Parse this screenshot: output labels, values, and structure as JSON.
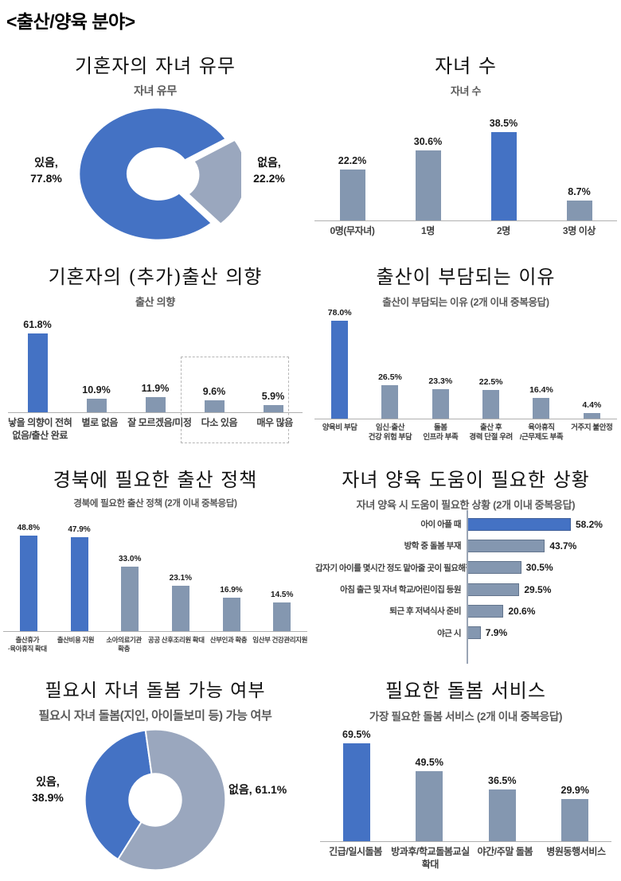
{
  "page": {
    "header": "<출산/양육 분야>"
  },
  "colors": {
    "accent_blue": "#4472C4",
    "bar_gray": "#8497B0",
    "donut_gray": "#9AA7BE",
    "axis_gray": "#b0b0b0"
  },
  "chart_data": [
    {
      "id": "children-existence",
      "type": "pie",
      "title": "기혼자의 자녀 유무",
      "subtitle": "자녀 유무",
      "labels": [
        "있음",
        "없음"
      ],
      "values": [
        77.8,
        22.2
      ],
      "unit": "%",
      "highlighted": [
        0
      ],
      "callouts": {
        "left": "있음,\n77.8%",
        "right": "없음,\n22.2%"
      },
      "exploded_slice": "없음"
    },
    {
      "id": "children-count",
      "type": "bar",
      "title": "자녀 수",
      "subtitle": "자녀 수",
      "categories": [
        "0명(무자녀)",
        "1명",
        "2명",
        "3명 이상"
      ],
      "values": [
        22.2,
        30.6,
        38.5,
        8.7
      ],
      "unit": "%",
      "highlighted": [
        2
      ],
      "ylim": [
        0,
        45
      ]
    },
    {
      "id": "birth-intention",
      "type": "bar",
      "title": "기혼자의 (추가)출산 의향",
      "subtitle": "출산 의향",
      "categories": [
        "낳을 의향이 전혀\n없음/출산 완료",
        "별로 없음",
        "잘 모르겠음/미정",
        "다소 있음",
        "매우 많음"
      ],
      "values": [
        61.8,
        10.9,
        11.9,
        9.6,
        5.9
      ],
      "unit": "%",
      "highlighted": [
        0
      ],
      "annotation_box_categories": [
        "다소 있음",
        "매우 많음"
      ],
      "ylim": [
        0,
        70
      ]
    },
    {
      "id": "burden-reasons",
      "type": "bar",
      "title": "출산이 부담되는 이유",
      "subtitle": "출산이 부담되는 이유 (2개 이내 중복응답)",
      "categories": [
        "양육비 부담",
        "임신·출산\n건강 위험 부담",
        "돌봄\n인프라 부족",
        "출산 후\n경력 단절 우려",
        "육아휴직\n/근무제도 부족",
        "거주지 불안정"
      ],
      "values": [
        78.0,
        26.5,
        23.3,
        22.5,
        16.4,
        4.4
      ],
      "unit": "%",
      "highlighted": [
        0
      ],
      "ylim": [
        0,
        85
      ]
    },
    {
      "id": "needed-birth-policy",
      "type": "bar",
      "title": "경북에 필요한 출산 정책",
      "subtitle": "경북에 필요한 출산 정책 (2개 이내 중복응답)",
      "categories": [
        "출산휴가\n·육아휴직 확대",
        "출산비용 지원",
        "소아의료기관\n확충",
        "공공 산후조리원 확대",
        "산부인과 확충",
        "임산부 건강관리지원"
      ],
      "values": [
        48.8,
        47.9,
        33.0,
        23.1,
        16.9,
        14.5
      ],
      "unit": "%",
      "highlighted": [
        0,
        1
      ],
      "ylim": [
        0,
        55
      ]
    },
    {
      "id": "care-help-situations",
      "type": "hbar",
      "title": "자녀 양육 도움이 필요한 상황",
      "subtitle": "자녀 양육 시 도움이 필요한 상황 (2개 이내 중복응답)",
      "categories": [
        "아이 아플 때",
        "방학 중 돌봄 부재",
        "갑자기 아이를 몇시간 정도 맡아줄 곳이 필요해질 때",
        "아침 출근 및 자녀 학교/어린이집 등원",
        "퇴근 후 저녁식사 준비",
        "야근 시"
      ],
      "values": [
        58.2,
        43.7,
        30.5,
        29.5,
        20.6,
        7.9
      ],
      "unit": "%",
      "highlighted": [
        0
      ],
      "xlim": [
        0,
        65
      ]
    },
    {
      "id": "care-availability",
      "type": "pie",
      "title": "필요시 자녀 돌봄 가능 여부",
      "subtitle": "필요시 자녀 돌봄(지인, 아이돌보미 등) 가능 여부",
      "labels": [
        "있음",
        "없음"
      ],
      "values": [
        38.9,
        61.1
      ],
      "unit": "%",
      "highlighted": [
        0
      ],
      "callouts": {
        "left": "있음,\n38.9%",
        "right": "없음, 61.1%"
      }
    },
    {
      "id": "needed-care-services",
      "type": "bar",
      "title": "필요한 돌봄 서비스",
      "subtitle": "가장 필요한 돌봄 서비스 (2개 이내 중복응답)",
      "categories": [
        "긴급/일시돌봄",
        "방과후/학교돌봄교실\n확대",
        "야간/주말 돌봄",
        "병원동행서비스"
      ],
      "values": [
        69.5,
        49.5,
        36.5,
        29.9
      ],
      "unit": "%",
      "highlighted": [
        0
      ],
      "ylim": [
        0,
        75
      ]
    }
  ]
}
